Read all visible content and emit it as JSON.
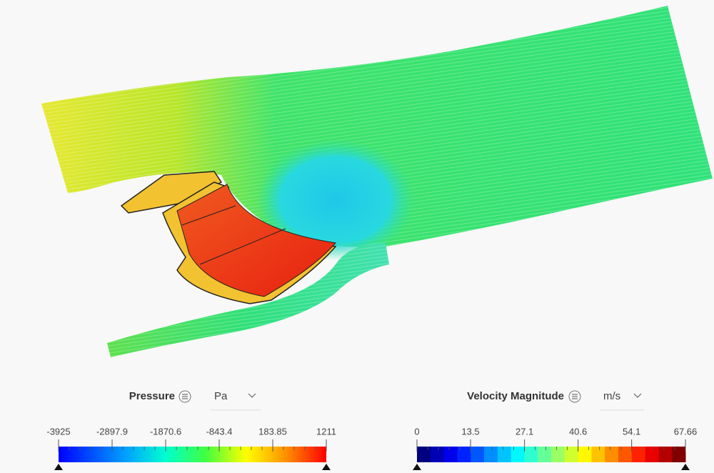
{
  "legends": [
    {
      "title": "Pressure",
      "unit": "Pa",
      "ticks": [
        -3925,
        -2897.9,
        -1870.6,
        -843.4,
        183.85,
        1211
      ]
    },
    {
      "title": "Velocity Magnitude",
      "unit": "m/s",
      "ticks": [
        0,
        13.5,
        27.1,
        40.6,
        54.1,
        67.66
      ]
    }
  ]
}
